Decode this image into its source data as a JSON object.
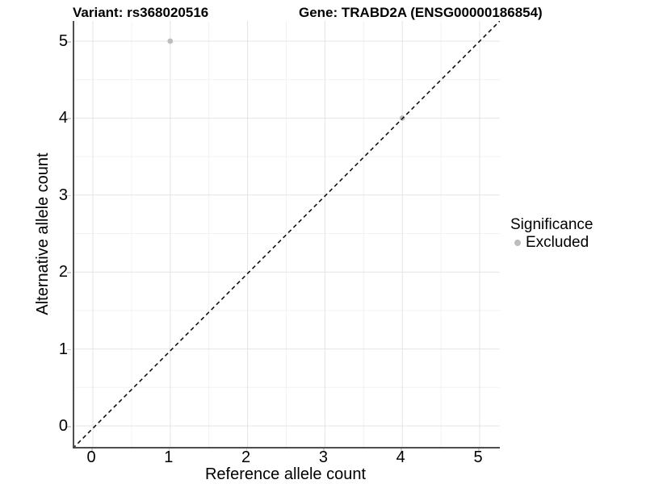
{
  "titles": {
    "variant": "Variant: rs368020516",
    "gene": "Gene: TRABD2A (ENSG00000186854)"
  },
  "chart_data": {
    "type": "scatter",
    "title_left": "Variant: rs368020516",
    "title_right": "Gene: TRABD2A (ENSG00000186854)",
    "xlabel": "Reference allele count",
    "ylabel": "Alternative allele count",
    "xlim": [
      -0.26,
      5.26
    ],
    "ylim": [
      -0.27,
      5.27
    ],
    "x_ticks": [
      0,
      1,
      2,
      3,
      4,
      5
    ],
    "y_ticks": [
      0,
      1,
      2,
      3,
      4,
      5
    ],
    "x_minor_ticks": [
      0.5,
      1.5,
      2.5,
      3.5,
      4.5
    ],
    "y_minor_ticks": [
      0.5,
      1.5,
      2.5,
      3.5,
      4.5
    ],
    "grid": "major-and-minor",
    "identity_line": {
      "equation": "y = x",
      "style": "dashed",
      "color": "#111111"
    },
    "series": [
      {
        "name": "Excluded",
        "color": "#bdbdbd",
        "points": [
          {
            "x": 1,
            "y": 5
          },
          {
            "x": 4,
            "y": 4
          }
        ]
      }
    ],
    "legend": {
      "title": "Significance",
      "position": "right",
      "entries": [
        {
          "label": "Excluded",
          "color": "#bdbdbd"
        }
      ]
    }
  },
  "style_colors": {
    "grid_major": "#e4e4e4",
    "grid_minor": "#f2f2f2",
    "axis_line": "#4e4e4e",
    "tick_mark": "#cfcfcf",
    "point": "#bdbdbd",
    "text": "#000000"
  }
}
